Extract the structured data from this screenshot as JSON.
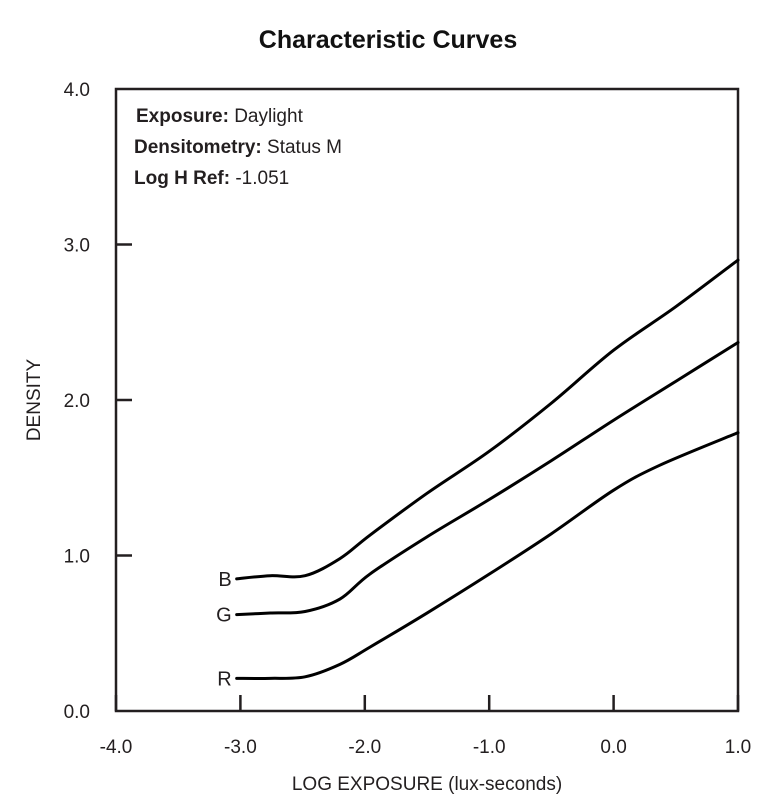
{
  "chart_data": {
    "type": "line",
    "title": "Characteristic Curves",
    "xlabel": "LOG EXPOSURE (lux-seconds)",
    "ylabel": "DENSITY",
    "xlim": [
      -4.0,
      1.0
    ],
    "ylim": [
      0.0,
      4.0
    ],
    "xticks": [
      "-4.0",
      "-3.0",
      "-2.0",
      "-1.0",
      "0.0",
      "1.0"
    ],
    "yticks": [
      "0.0",
      "1.0",
      "2.0",
      "3.0",
      "4.0"
    ],
    "grid": false,
    "annotations": [
      {
        "label": "Exposure:",
        "value": "Daylight"
      },
      {
        "label": "Densitometry:",
        "value": "Status M"
      },
      {
        "label": "Log H Ref:",
        "value": "-1.051"
      }
    ],
    "series": [
      {
        "name": "B",
        "color": "#000000",
        "x": [
          -3.03,
          -2.76,
          -2.48,
          -2.2,
          -1.96,
          -1.5,
          -1.0,
          -0.5,
          0.0,
          0.5,
          1.0
        ],
        "y": [
          0.85,
          0.87,
          0.87,
          0.98,
          1.13,
          1.4,
          1.67,
          1.98,
          2.32,
          2.6,
          2.9
        ]
      },
      {
        "name": "G",
        "color": "#000000",
        "x": [
          -3.03,
          -2.76,
          -2.48,
          -2.2,
          -1.96,
          -1.5,
          -1.0,
          -0.5,
          0.0,
          0.5,
          1.0
        ],
        "y": [
          0.62,
          0.63,
          0.64,
          0.72,
          0.88,
          1.12,
          1.36,
          1.61,
          1.87,
          2.12,
          2.37
        ]
      },
      {
        "name": "R",
        "color": "#000000",
        "x": [
          -3.03,
          -2.76,
          -2.48,
          -2.2,
          -1.96,
          -1.5,
          -1.0,
          -0.5,
          0.0,
          0.37,
          1.0
        ],
        "y": [
          0.21,
          0.21,
          0.22,
          0.3,
          0.41,
          0.63,
          0.88,
          1.14,
          1.42,
          1.58,
          1.79
        ]
      }
    ]
  }
}
